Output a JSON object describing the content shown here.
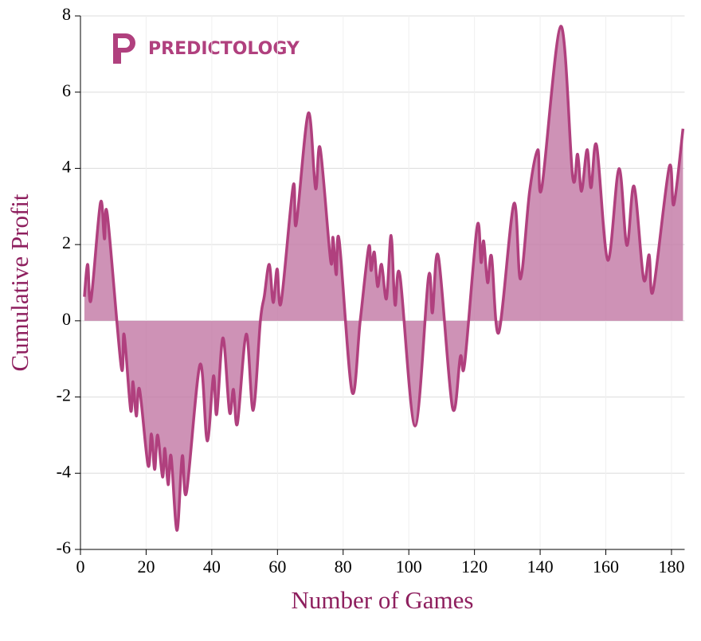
{
  "chart_data": {
    "type": "area",
    "logo": "PREDICTOLOGY",
    "xlabel": "Number of Games",
    "ylabel": "Cumulative Profit",
    "x": [
      1.2,
      2.2,
      3.2,
      6.1,
      7.3,
      8.2,
      12.4,
      13.3,
      15.3,
      16,
      17,
      18,
      20.6,
      21.6,
      22.6,
      23.5,
      25,
      25.7,
      26.7,
      27.6,
      29.4,
      31,
      32.3,
      36.4,
      38.6,
      40.5,
      41.5,
      43.4,
      45.4,
      46.6,
      47.8,
      50.5,
      52.6,
      54.8,
      56,
      57.5,
      58.7,
      59.9,
      61.1,
      64.8,
      65.7,
      69.4,
      71.6,
      73,
      76.2,
      76.9,
      77.9,
      78.8,
      82.7,
      85.2,
      87.8,
      88.5,
      89.5,
      90.5,
      91.7,
      93.2,
      94.6,
      95.8,
      97.3,
      101.9,
      106,
      107.2,
      109,
      113.3,
      115.7,
      117,
      120.8,
      122,
      122.8,
      124,
      125.2,
      127.4,
      132,
      134,
      136.8,
      139.3,
      140.5,
      146.3,
      149.9,
      151.4,
      152.6,
      154.3,
      155.5,
      157.2,
      160.6,
      164,
      166.4,
      168.6,
      171.5,
      173.2,
      174.4,
      179.3,
      180.7,
      183.5
    ],
    "values": [
      0.63,
      1.48,
      0.54,
      3.1,
      2.15,
      2.78,
      -1.2,
      -0.36,
      -2.35,
      -1.6,
      -2.5,
      -1.8,
      -3.8,
      -2.97,
      -3.9,
      -3.0,
      -4.1,
      -3.35,
      -4.3,
      -3.55,
      -5.5,
      -3.55,
      -4.5,
      -1.15,
      -3.15,
      -1.45,
      -2.45,
      -0.45,
      -2.4,
      -1.8,
      -2.7,
      -0.35,
      -2.35,
      0,
      0.65,
      1.48,
      0.48,
      1.36,
      0.48,
      3.55,
      2.53,
      5.45,
      3.47,
      4.53,
      1.57,
      2.19,
      1.21,
      2.11,
      -1.86,
      0,
      1.94,
      1.32,
      1.8,
      0.9,
      1.48,
      0.58,
      2.24,
      0.42,
      1.19,
      -2.76,
      1.15,
      0.21,
      1.69,
      -2.28,
      -0.94,
      -1.13,
      2.47,
      1.53,
      2.09,
      1.0,
      1.69,
      -0.31,
      3.07,
      1.1,
      3.4,
      4.49,
      3.49,
      7.73,
      3.78,
      4.37,
      3.4,
      4.49,
      3.49,
      4.6,
      1.59,
      3.99,
      1.98,
      3.53,
      1.1,
      1.73,
      0.79,
      4.03,
      3.05,
      5.04
    ],
    "line_color": "#b0407e",
    "fill_color": "#c277a4",
    "xlim": [
      0,
      184
    ],
    "ylim": [
      -6,
      8
    ],
    "xticks": [
      0,
      20,
      40,
      60,
      80,
      100,
      120,
      140,
      160,
      180
    ],
    "yticks": [
      -6,
      -4,
      -2,
      0,
      2,
      4,
      6,
      8
    ],
    "grid": true
  }
}
